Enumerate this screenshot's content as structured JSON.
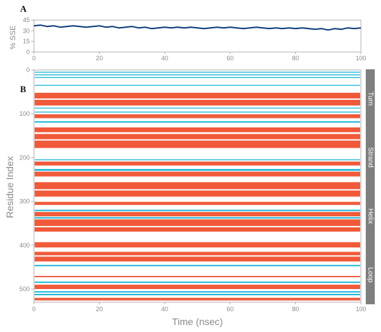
{
  "chart_data": [
    {
      "panel": "A",
      "type": "line",
      "ylabel": "% SSE",
      "xlim": [
        0,
        100
      ],
      "ylim": [
        0,
        45
      ],
      "x_ticks": [
        "0",
        "20",
        "40",
        "60",
        "80",
        "100"
      ],
      "y_ticks": [
        "0",
        "15",
        "30",
        "45"
      ],
      "grid": false,
      "colors": {
        "line": "#0b3c7a"
      },
      "series": [
        {
          "x": [
            0,
            2,
            4,
            6,
            8,
            10,
            12,
            14,
            16,
            18,
            20,
            22,
            24,
            26,
            28,
            30,
            32,
            34,
            36,
            38,
            40,
            42,
            44,
            46,
            48,
            50,
            52,
            54,
            56,
            58,
            60,
            62,
            64,
            66,
            68,
            70,
            72,
            74,
            76,
            78,
            80,
            82,
            84,
            86,
            88,
            90,
            92,
            94,
            96,
            98,
            100
          ],
          "values": [
            37,
            38,
            36,
            37,
            35,
            36,
            37,
            36,
            35,
            36,
            37,
            35,
            36,
            34,
            35,
            36,
            34,
            35,
            33,
            34,
            35,
            34,
            35,
            34,
            35,
            34,
            33,
            34,
            35,
            34,
            35,
            34,
            33,
            34,
            35,
            34,
            33,
            34,
            33,
            34,
            33,
            34,
            33,
            32,
            33,
            31,
            33,
            32,
            34,
            33,
            34
          ]
        }
      ]
    },
    {
      "panel": "B",
      "type": "heatmap",
      "xlabel": "Time (nsec)",
      "ylabel": "Residue Index",
      "xlim": [
        0,
        100
      ],
      "ylim": [
        0,
        530
      ],
      "x_ticks": [
        "0",
        "20",
        "40",
        "60",
        "80",
        "100"
      ],
      "y_ticks": [
        "0",
        "100",
        "200",
        "300",
        "400",
        "500"
      ],
      "legend_labels": [
        "Turn",
        "Strand",
        "Helix",
        "Loop"
      ],
      "colors": {
        "helix": "#f05a3a",
        "strand": "#19b5d8",
        "legend_bar": "#7f7f7f"
      },
      "bands": [
        {
          "type": "strand",
          "start": 4,
          "end": 6
        },
        {
          "type": "strand",
          "start": 10,
          "end": 12
        },
        {
          "type": "strand",
          "start": 16,
          "end": 18
        },
        {
          "type": "strand",
          "start": 34,
          "end": 36
        },
        {
          "type": "helix",
          "start": 52,
          "end": 65
        },
        {
          "type": "helix",
          "start": 68,
          "end": 81
        },
        {
          "type": "strand",
          "start": 86,
          "end": 88
        },
        {
          "type": "strand",
          "start": 95,
          "end": 97
        },
        {
          "type": "helix",
          "start": 101,
          "end": 110
        },
        {
          "type": "strand",
          "start": 117,
          "end": 120
        },
        {
          "type": "helix",
          "start": 131,
          "end": 142
        },
        {
          "type": "helix",
          "start": 146,
          "end": 158
        },
        {
          "type": "helix",
          "start": 161,
          "end": 178
        },
        {
          "type": "strand",
          "start": 204,
          "end": 206
        },
        {
          "type": "helix",
          "start": 209,
          "end": 218
        },
        {
          "type": "strand",
          "start": 226,
          "end": 230
        },
        {
          "type": "helix",
          "start": 232,
          "end": 243
        },
        {
          "type": "helix",
          "start": 256,
          "end": 272
        },
        {
          "type": "helix",
          "start": 275,
          "end": 289
        },
        {
          "type": "helix",
          "start": 301,
          "end": 308
        },
        {
          "type": "strand",
          "start": 319,
          "end": 322
        },
        {
          "type": "helix",
          "start": 324,
          "end": 334
        },
        {
          "type": "strand",
          "start": 336,
          "end": 339
        },
        {
          "type": "helix",
          "start": 341,
          "end": 356
        },
        {
          "type": "helix",
          "start": 359,
          "end": 369
        },
        {
          "type": "helix",
          "start": 393,
          "end": 405
        },
        {
          "type": "helix",
          "start": 415,
          "end": 423
        },
        {
          "type": "helix",
          "start": 426,
          "end": 437
        },
        {
          "type": "strand",
          "start": 445,
          "end": 448
        },
        {
          "type": "helix",
          "start": 470,
          "end": 473
        },
        {
          "type": "strand",
          "start": 483,
          "end": 486
        },
        {
          "type": "helix",
          "start": 490,
          "end": 500
        },
        {
          "type": "strand",
          "start": 505,
          "end": 508
        },
        {
          "type": "strand",
          "start": 511,
          "end": 514
        },
        {
          "type": "helix",
          "start": 520,
          "end": 526
        }
      ]
    }
  ]
}
